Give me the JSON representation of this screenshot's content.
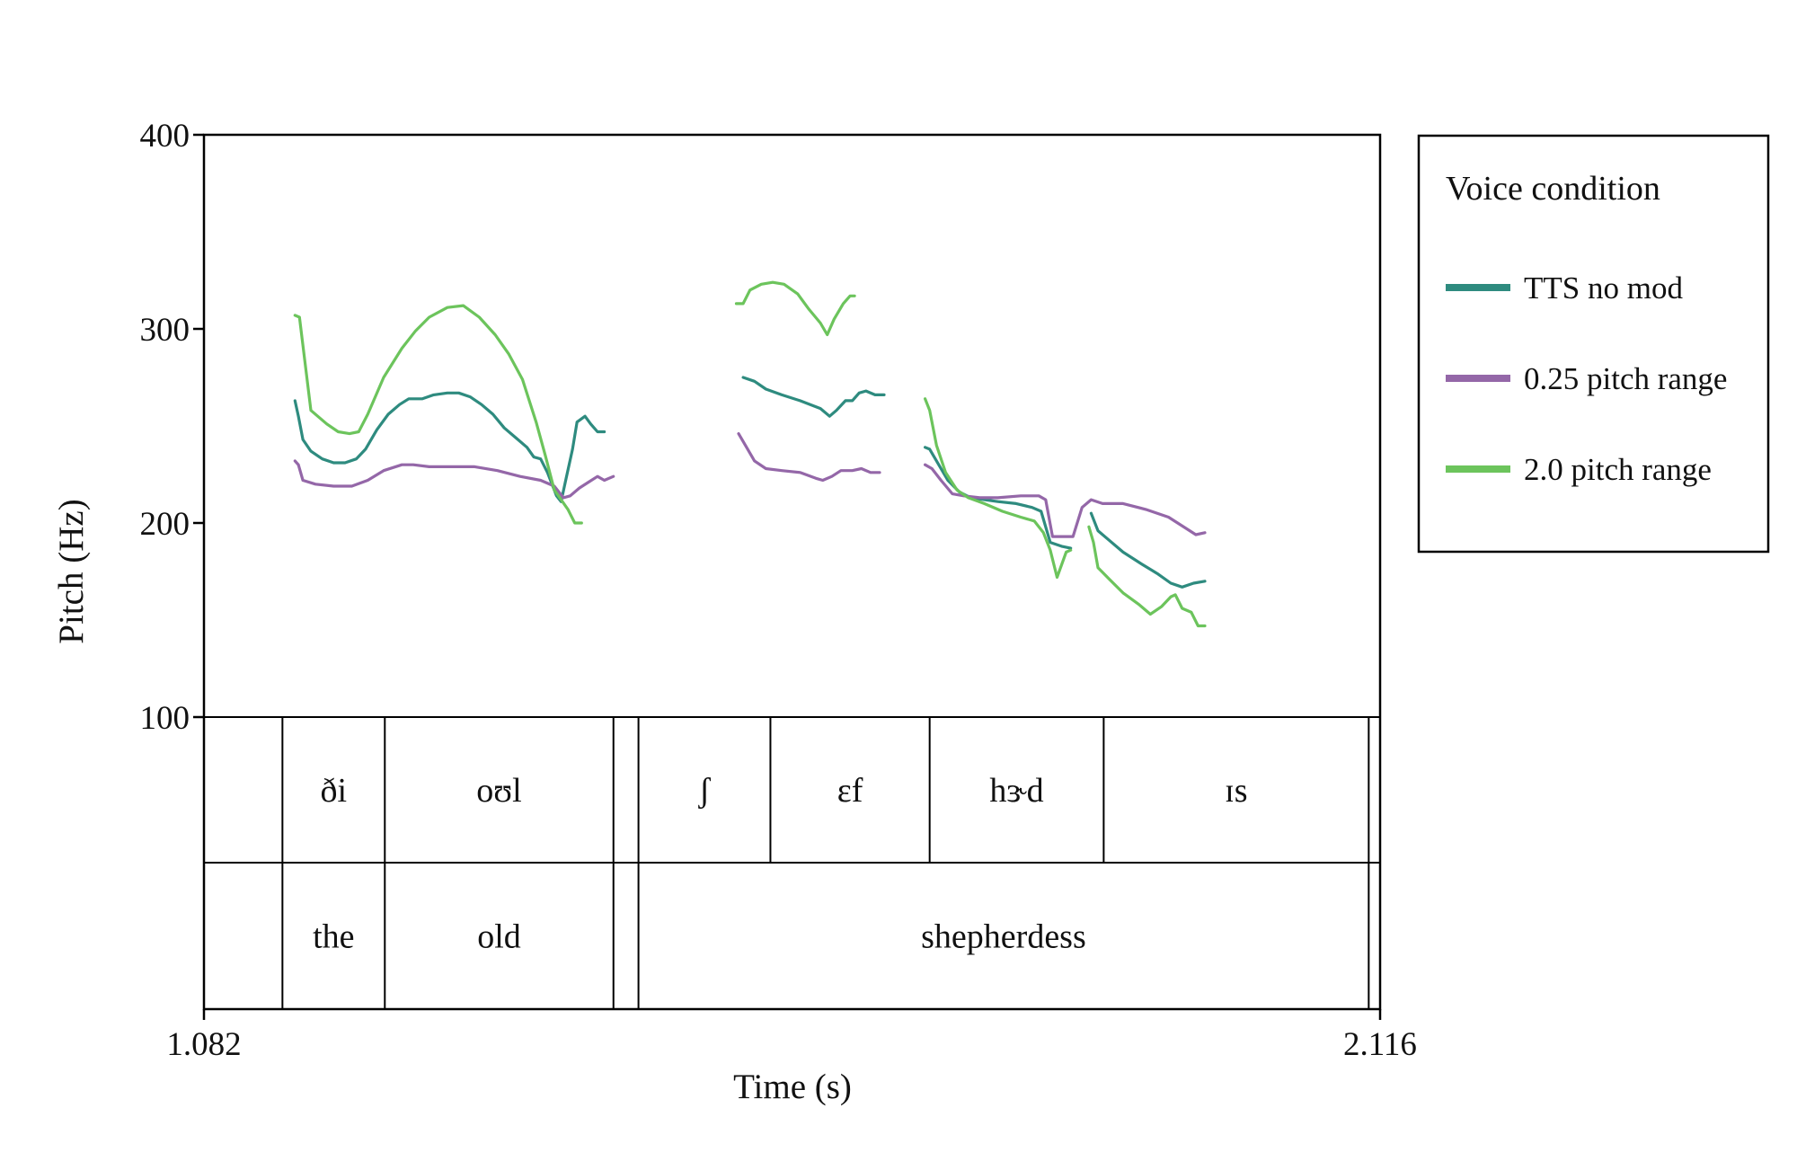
{
  "chart_data": {
    "type": "line",
    "xlabel": "Time (s)",
    "ylabel": "Pitch (Hz)",
    "xlim": [
      1.082,
      2.116
    ],
    "ylim": [
      100,
      400
    ],
    "x_tick_labels": [
      "1.082",
      "2.116"
    ],
    "y_ticks": [
      100,
      200,
      300,
      400
    ],
    "grid": false,
    "legend": {
      "title": "Voice condition",
      "placement": "right"
    },
    "series": [
      {
        "name": "TTS no mod",
        "color": "#2e8b7f",
        "segments": [
          [
            [
              1.162,
              263
            ],
            [
              1.165,
              255
            ],
            [
              1.169,
              243
            ],
            [
              1.176,
              237
            ],
            [
              1.186,
              233
            ],
            [
              1.196,
              231
            ],
            [
              1.206,
              231
            ],
            [
              1.216,
              233
            ],
            [
              1.224,
              238
            ],
            [
              1.234,
              248
            ],
            [
              1.244,
              256
            ],
            [
              1.254,
              261
            ],
            [
              1.262,
              264
            ],
            [
              1.274,
              264
            ],
            [
              1.284,
              266
            ],
            [
              1.296,
              267
            ],
            [
              1.306,
              267
            ],
            [
              1.316,
              265
            ],
            [
              1.326,
              261
            ],
            [
              1.336,
              256
            ],
            [
              1.346,
              249
            ],
            [
              1.356,
              244
            ],
            [
              1.366,
              239
            ],
            [
              1.372,
              234
            ],
            [
              1.378,
              233
            ],
            [
              1.384,
              226
            ],
            [
              1.392,
              214
            ],
            [
              1.396,
              211
            ],
            [
              1.4,
              222
            ],
            [
              1.406,
              238
            ],
            [
              1.41,
              252
            ],
            [
              1.417,
              255
            ],
            [
              1.422,
              251
            ],
            [
              1.428,
              247
            ],
            [
              1.434,
              247
            ]
          ],
          [
            [
              1.556,
              275
            ],
            [
              1.566,
              273
            ],
            [
              1.576,
              269
            ],
            [
              1.59,
              266
            ],
            [
              1.606,
              263
            ],
            [
              1.624,
              259
            ],
            [
              1.632,
              255
            ],
            [
              1.638,
              258
            ],
            [
              1.646,
              263
            ],
            [
              1.652,
              263
            ],
            [
              1.658,
              267
            ],
            [
              1.664,
              268
            ],
            [
              1.672,
              266
            ],
            [
              1.68,
              266
            ]
          ],
          [
            [
              1.716,
              239
            ],
            [
              1.72,
              238
            ],
            [
              1.728,
              230
            ],
            [
              1.736,
              222
            ],
            [
              1.746,
              216
            ],
            [
              1.756,
              213
            ],
            [
              1.768,
              212
            ],
            [
              1.78,
              211
            ],
            [
              1.796,
              210
            ],
            [
              1.81,
              208
            ],
            [
              1.818,
              206
            ],
            [
              1.826,
              190
            ],
            [
              1.836,
              188
            ],
            [
              1.844,
              187
            ]
          ],
          [
            [
              1.862,
              205
            ],
            [
              1.868,
              196
            ],
            [
              1.876,
              192
            ],
            [
              1.89,
              185
            ],
            [
              1.906,
              179
            ],
            [
              1.92,
              174
            ],
            [
              1.932,
              169
            ],
            [
              1.942,
              167
            ],
            [
              1.952,
              169
            ],
            [
              1.962,
              170
            ]
          ]
        ]
      },
      {
        "name": "0.25 pitch range",
        "color": "#9467a8",
        "segments": [
          [
            [
              1.162,
              232
            ],
            [
              1.165,
              230
            ],
            [
              1.169,
              222
            ],
            [
              1.18,
              220
            ],
            [
              1.196,
              219
            ],
            [
              1.212,
              219
            ],
            [
              1.226,
              222
            ],
            [
              1.24,
              227
            ],
            [
              1.256,
              230
            ],
            [
              1.266,
              230
            ],
            [
              1.28,
              229
            ],
            [
              1.3,
              229
            ],
            [
              1.32,
              229
            ],
            [
              1.34,
              227
            ],
            [
              1.36,
              224
            ],
            [
              1.378,
              222
            ],
            [
              1.39,
              219
            ],
            [
              1.398,
              213
            ],
            [
              1.404,
              214
            ],
            [
              1.412,
              218
            ],
            [
              1.42,
              221
            ],
            [
              1.428,
              224
            ],
            [
              1.434,
              222
            ],
            [
              1.442,
              224
            ]
          ],
          [
            [
              1.552,
              246
            ],
            [
              1.558,
              240
            ],
            [
              1.566,
              232
            ],
            [
              1.576,
              228
            ],
            [
              1.59,
              227
            ],
            [
              1.606,
              226
            ],
            [
              1.62,
              223
            ],
            [
              1.626,
              222
            ],
            [
              1.634,
              224
            ],
            [
              1.642,
              227
            ],
            [
              1.652,
              227
            ],
            [
              1.66,
              228
            ],
            [
              1.668,
              226
            ],
            [
              1.676,
              226
            ]
          ],
          [
            [
              1.716,
              230
            ],
            [
              1.722,
              228
            ],
            [
              1.73,
              222
            ],
            [
              1.74,
              215
            ],
            [
              1.75,
              214
            ],
            [
              1.764,
              213
            ],
            [
              1.78,
              213
            ],
            [
              1.8,
              214
            ],
            [
              1.816,
              214
            ],
            [
              1.822,
              212
            ],
            [
              1.828,
              193
            ],
            [
              1.836,
              193
            ],
            [
              1.846,
              193
            ],
            [
              1.854,
              208
            ],
            [
              1.862,
              212
            ],
            [
              1.872,
              210
            ],
            [
              1.89,
              210
            ],
            [
              1.91,
              207
            ],
            [
              1.93,
              203
            ],
            [
              1.946,
              197
            ],
            [
              1.954,
              194
            ],
            [
              1.962,
              195
            ]
          ]
        ]
      },
      {
        "name": "2.0 pitch range",
        "color": "#6cc45c",
        "segments": [
          [
            [
              1.162,
              307
            ],
            [
              1.166,
              306
            ],
            [
              1.176,
              258
            ],
            [
              1.19,
              251
            ],
            [
              1.2,
              247
            ],
            [
              1.21,
              246
            ],
            [
              1.218,
              247
            ],
            [
              1.226,
              256
            ],
            [
              1.24,
              275
            ],
            [
              1.256,
              290
            ],
            [
              1.268,
              299
            ],
            [
              1.28,
              306
            ],
            [
              1.296,
              311
            ],
            [
              1.31,
              312
            ],
            [
              1.324,
              306
            ],
            [
              1.338,
              297
            ],
            [
              1.35,
              287
            ],
            [
              1.362,
              274
            ],
            [
              1.374,
              252
            ],
            [
              1.382,
              235
            ],
            [
              1.39,
              217
            ],
            [
              1.396,
              212
            ],
            [
              1.402,
              207
            ],
            [
              1.408,
              200
            ],
            [
              1.414,
              200
            ]
          ],
          [
            [
              1.55,
              313
            ],
            [
              1.556,
              313
            ],
            [
              1.562,
              320
            ],
            [
              1.572,
              323
            ],
            [
              1.582,
              324
            ],
            [
              1.592,
              323
            ],
            [
              1.604,
              318
            ],
            [
              1.614,
              310
            ],
            [
              1.624,
              303
            ],
            [
              1.63,
              297
            ],
            [
              1.636,
              305
            ],
            [
              1.644,
              313
            ],
            [
              1.65,
              317
            ],
            [
              1.654,
              317
            ]
          ],
          [
            [
              1.716,
              264
            ],
            [
              1.72,
              258
            ],
            [
              1.726,
              240
            ],
            [
              1.734,
              226
            ],
            [
              1.744,
              217
            ],
            [
              1.754,
              213
            ],
            [
              1.768,
              210
            ],
            [
              1.784,
              206
            ],
            [
              1.8,
              203
            ],
            [
              1.812,
              201
            ],
            [
              1.82,
              195
            ],
            [
              1.826,
              186
            ],
            [
              1.832,
              172
            ],
            [
              1.84,
              185
            ],
            [
              1.844,
              186
            ]
          ],
          [
            [
              1.86,
              198
            ],
            [
              1.864,
              190
            ],
            [
              1.868,
              177
            ],
            [
              1.878,
              171
            ],
            [
              1.89,
              164
            ],
            [
              1.904,
              158
            ],
            [
              1.914,
              153
            ],
            [
              1.924,
              157
            ],
            [
              1.932,
              162
            ],
            [
              1.936,
              163
            ],
            [
              1.942,
              156
            ],
            [
              1.95,
              154
            ],
            [
              1.956,
              147
            ],
            [
              1.962,
              147
            ]
          ]
        ]
      }
    ]
  },
  "tiers": [
    {
      "boundaries": [
        1.082,
        1.151,
        1.241,
        1.442,
        1.464,
        1.58,
        1.72,
        1.873,
        2.106,
        2.116
      ],
      "labels": [
        "",
        "ði",
        "oʊl",
        "",
        "ʃ",
        "ɛf",
        "hɝd",
        "ɪs",
        ""
      ]
    },
    {
      "boundaries": [
        1.082,
        1.151,
        1.241,
        1.442,
        1.464,
        2.106,
        2.116
      ],
      "labels": [
        "",
        "the",
        "old",
        "",
        "shepherdess",
        ""
      ]
    }
  ]
}
